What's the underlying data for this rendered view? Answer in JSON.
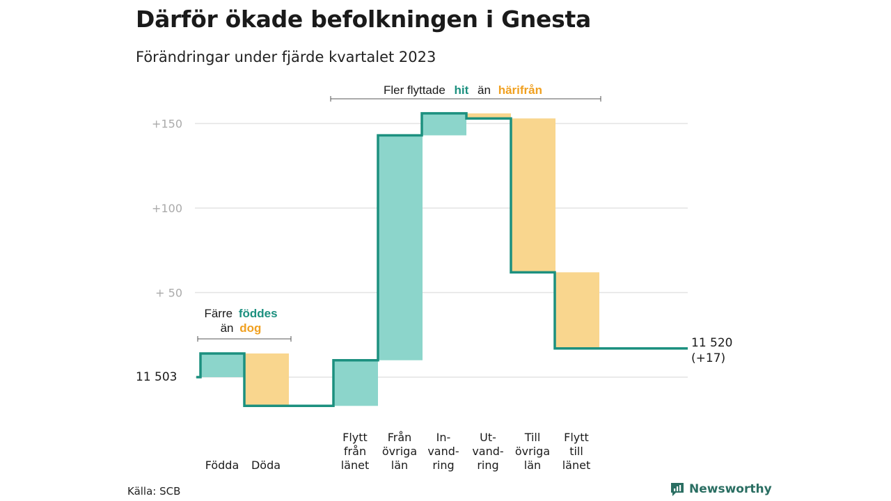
{
  "title": "Därför ökade befolkningen i Gnesta",
  "subtitle": "Förändringar under fjärde kvartalet 2023",
  "source": "Källa: SCB",
  "brand": "Newsworthy",
  "colors": {
    "increase": "#8cd5cb",
    "decrease": "#f9d68e",
    "line": "#1c907f",
    "teal_text": "#1c907f",
    "orange_text": "#f0a020"
  },
  "annotations": {
    "births": {
      "line1": "Färre",
      "line1_bold": "föddes",
      "line2": "än",
      "line2_bold": "dog"
    },
    "migration": {
      "pre": "Fler flyttade",
      "bold1": "hit",
      "mid": "än",
      "bold2": "härifrån"
    }
  },
  "start_label": "11  503",
  "end_label": {
    "line1": "11 520",
    "line2": "(+17)"
  },
  "chart_data": {
    "type": "waterfall",
    "title": "Därför ökade befolkningen i Gnesta",
    "subtitle": "Förändringar under fjärde kvartalet 2023",
    "baseline": 11503,
    "end_value": 11520,
    "net_change": 17,
    "yticks": [
      "+150",
      "+100",
      "+  50"
    ],
    "ytick_values": [
      150,
      100,
      50
    ],
    "ylim": [
      -25,
      160
    ],
    "grid": true,
    "steps": [
      {
        "label": [
          "Födda"
        ],
        "change": 14,
        "kind": "increase"
      },
      {
        "label": [
          "Döda"
        ],
        "change": -31,
        "kind": "decrease"
      },
      {
        "label": [
          "Flytt",
          "från",
          "länet"
        ],
        "change": 27,
        "kind": "increase"
      },
      {
        "label": [
          "Från",
          "övriga",
          "län"
        ],
        "change": 133,
        "kind": "increase"
      },
      {
        "label": [
          "In-",
          "vand-",
          "ring"
        ],
        "change": 13,
        "kind": "increase"
      },
      {
        "label": [
          "Ut-",
          "vand-",
          "ring"
        ],
        "change": -3,
        "kind": "decrease"
      },
      {
        "label": [
          "Till",
          "övriga",
          "län"
        ],
        "change": -91,
        "kind": "decrease"
      },
      {
        "label": [
          "Flytt",
          "till",
          "länet"
        ],
        "change": -45,
        "kind": "decrease"
      }
    ]
  }
}
